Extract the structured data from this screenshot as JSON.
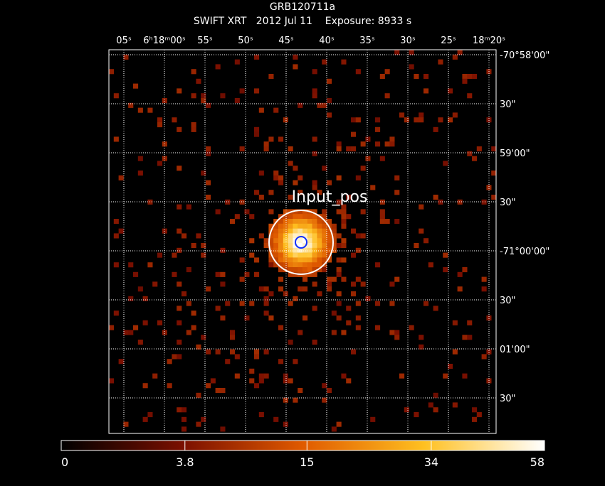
{
  "header": {
    "title": "GRB120711a",
    "subtitle": "SWIFT XRT   2012 Jul 11    Exposure: 8933 s"
  },
  "ra_labels": [
    "05ˢ",
    "6ʰ18ᵐ00ˢ",
    "55ˢ",
    "50ˢ",
    "45ˢ",
    "40ˢ",
    "35ˢ",
    "30ˢ",
    "25ˢ",
    "18ᵐ20ˢ"
  ],
  "dec_labels": [
    "-70°58'00\"",
    "30\"",
    "59'00\"",
    "30\"",
    "-71°00'00\"",
    "30\"",
    "01'00\"",
    "30\""
  ],
  "annotation": "Input_pos",
  "colorbar": {
    "scale": "sqrt",
    "lim": [
      0,
      58
    ],
    "ticks": [
      0,
      3.8,
      15,
      34,
      58
    ]
  }
}
